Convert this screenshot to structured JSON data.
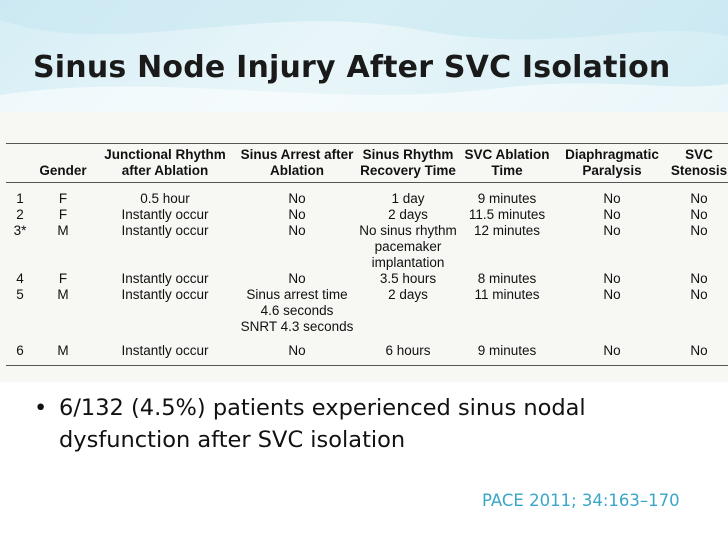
{
  "slide": {
    "title": "Sinus Node Injury After SVC Isolation",
    "accent_color": "#3aa6c8"
  },
  "table": {
    "headers": [
      "",
      "Gender",
      "Junctional Rhythm after Ablation",
      "Sinus Arrest after Ablation",
      "Sinus Rhythm Recovery Time",
      "SVC Ablation Time",
      "Diaphragmatic Paralysis",
      "SVC Stenosis"
    ],
    "rows": [
      {
        "num": "1",
        "gender": "F",
        "junctional": "0.5 hour",
        "arrest": "No",
        "recovery": "1 day",
        "ablation_time": "9 minutes",
        "paralysis": "No",
        "stenosis": "No"
      },
      {
        "num": "2",
        "gender": "F",
        "junctional": "Instantly occur",
        "arrest": "No",
        "recovery": "2 days",
        "ablation_time": "11.5 minutes",
        "paralysis": "No",
        "stenosis": "No"
      },
      {
        "num": "3*",
        "gender": "M",
        "junctional": "Instantly occur",
        "arrest": "No",
        "recovery": "No sinus rhythm",
        "ablation_time": "12 minutes",
        "paralysis": "No",
        "stenosis": "No"
      },
      {
        "recovery": "pacemaker"
      },
      {
        "recovery": "implantation"
      },
      {
        "num": "4",
        "gender": "F",
        "junctional": "Instantly occur",
        "arrest": "No",
        "recovery": "3.5 hours",
        "ablation_time": "8 minutes",
        "paralysis": "No",
        "stenosis": "No"
      },
      {
        "num": "5",
        "gender": "M",
        "junctional": "Instantly occur",
        "arrest": "Sinus arrest time",
        "recovery": "2 days",
        "ablation_time": "11 minutes",
        "paralysis": "No",
        "stenosis": "No"
      },
      {
        "arrest": "4.6 seconds"
      },
      {
        "arrest": "SNRT 4.3 seconds"
      },
      {
        "num": "6",
        "gender": "M",
        "junctional": "Instantly occur",
        "arrest": "No",
        "recovery": "6 hours",
        "ablation_time": "9 minutes",
        "paralysis": "No",
        "stenosis": "No"
      }
    ]
  },
  "bullet": {
    "symbol": "•",
    "text": "6/132 (4.5%) patients experienced sinus nodal dysfunction after SVC isolation"
  },
  "citation": "PACE 2011; 34:163–170"
}
